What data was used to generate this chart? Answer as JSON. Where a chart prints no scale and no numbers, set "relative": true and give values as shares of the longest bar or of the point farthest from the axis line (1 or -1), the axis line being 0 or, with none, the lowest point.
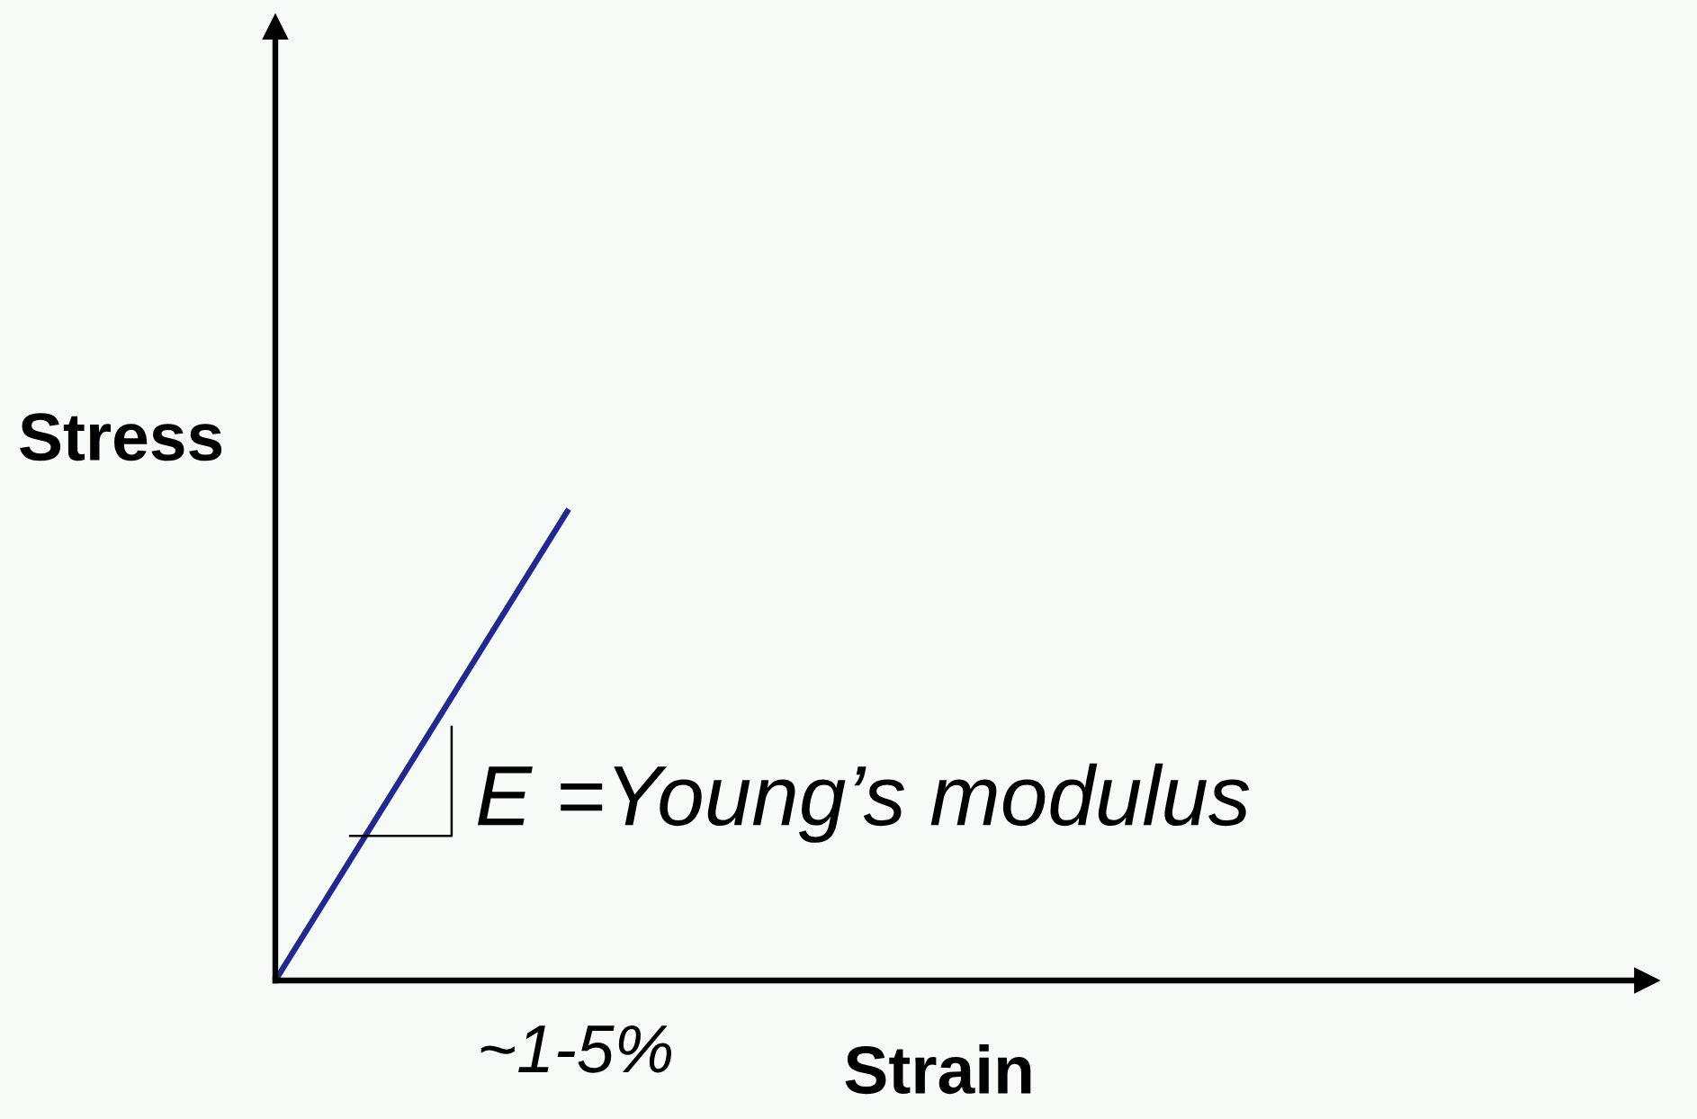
{
  "chart_data": {
    "type": "line",
    "xlabel": "Strain",
    "ylabel": "Stress",
    "categories": [
      null,
      null
    ],
    "series": [
      {
        "color": "#23288c",
        "values": [
          0,
          1
        ]
      }
    ],
    "relative": true,
    "annotations": [
      "E =Young’s modulus",
      "~1-5%"
    ]
  }
}
